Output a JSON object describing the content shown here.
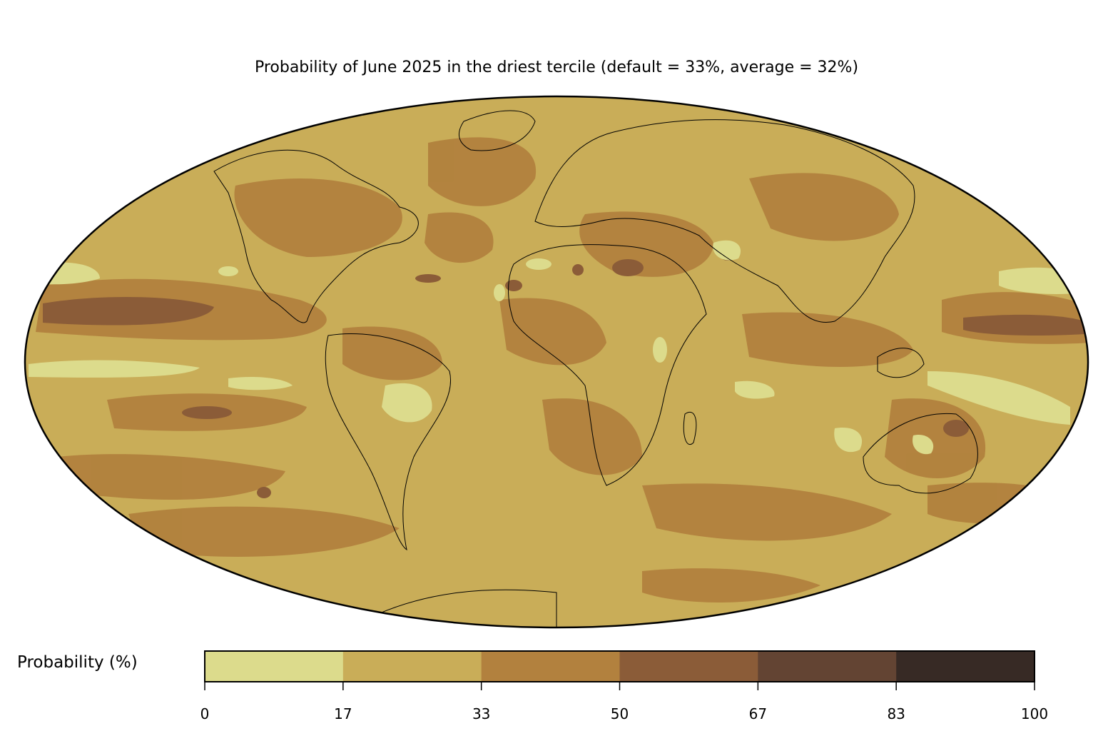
{
  "title": "Probability of June 2025 in the driest tercile (default = 33%, average = 32%)",
  "colorbar": {
    "label": "Probability (%)",
    "ticks": [
      "0",
      "17",
      "33",
      "50",
      "67",
      "83",
      "100"
    ],
    "colors": [
      "#dcdb8c",
      "#c9ad58",
      "#b2813e",
      "#8b5c38",
      "#634433",
      "#372a25"
    ]
  },
  "map": {
    "projection": "Mollweide",
    "ocean_background": "#c9ad58"
  }
}
